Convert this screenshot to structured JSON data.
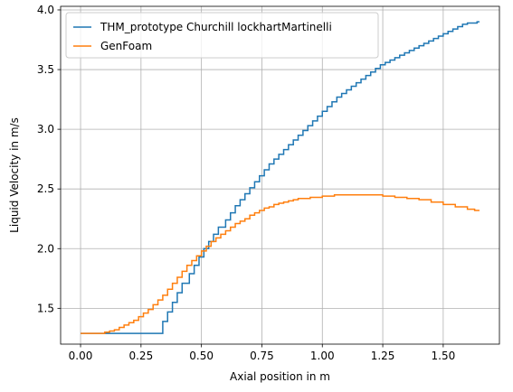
{
  "chart_data": {
    "type": "line",
    "drawstyle": "steps",
    "xlabel": "Axial position in m",
    "ylabel": "Liquid Velocity in m/s",
    "xlim": [
      -0.0825,
      1.7325
    ],
    "ylim": [
      1.2,
      4.03
    ],
    "xticks": [
      "0.00",
      "0.25",
      "0.50",
      "0.75",
      "1.00",
      "1.25",
      "1.50"
    ],
    "xtick_values": [
      0,
      0.25,
      0.5,
      0.75,
      1.0,
      1.25,
      1.5
    ],
    "yticks": [
      "1.5",
      "2.0",
      "2.5",
      "3.0",
      "3.5",
      "4.0"
    ],
    "ytick_values": [
      1.5,
      2.0,
      2.5,
      3.0,
      3.5,
      4.0
    ],
    "grid": true,
    "legend_position": "top-left",
    "series": [
      {
        "name": "THM_prototype Churchill lockhartMartinelli",
        "color": "#1f77b4",
        "x": [
          0.0,
          0.1,
          0.2,
          0.3,
          0.33,
          0.34,
          0.36,
          0.38,
          0.4,
          0.42,
          0.45,
          0.47,
          0.49,
          0.51,
          0.53,
          0.55,
          0.57,
          0.6,
          0.62,
          0.64,
          0.66,
          0.68,
          0.7,
          0.72,
          0.74,
          0.76,
          0.78,
          0.8,
          0.82,
          0.84,
          0.86,
          0.88,
          0.9,
          0.92,
          0.94,
          0.96,
          0.98,
          1.0,
          1.02,
          1.04,
          1.06,
          1.08,
          1.1,
          1.12,
          1.14,
          1.16,
          1.18,
          1.2,
          1.22,
          1.24,
          1.26,
          1.28,
          1.3,
          1.32,
          1.34,
          1.36,
          1.38,
          1.4,
          1.42,
          1.44,
          1.46,
          1.48,
          1.5,
          1.52,
          1.54,
          1.56,
          1.58,
          1.6,
          1.62,
          1.64,
          1.65
        ],
        "y": [
          1.29,
          1.29,
          1.29,
          1.29,
          1.29,
          1.39,
          1.47,
          1.55,
          1.63,
          1.71,
          1.79,
          1.86,
          1.93,
          2.0,
          2.06,
          2.12,
          2.18,
          2.24,
          2.3,
          2.36,
          2.41,
          2.46,
          2.51,
          2.56,
          2.61,
          2.66,
          2.71,
          2.75,
          2.79,
          2.83,
          2.87,
          2.91,
          2.95,
          2.99,
          3.03,
          3.07,
          3.11,
          3.15,
          3.19,
          3.23,
          3.27,
          3.3,
          3.33,
          3.36,
          3.39,
          3.42,
          3.45,
          3.48,
          3.51,
          3.54,
          3.56,
          3.58,
          3.6,
          3.62,
          3.64,
          3.66,
          3.68,
          3.7,
          3.72,
          3.74,
          3.76,
          3.78,
          3.8,
          3.82,
          3.84,
          3.86,
          3.88,
          3.89,
          3.89,
          3.9,
          3.9
        ]
      },
      {
        "name": "GenFoam",
        "color": "#ff7f0e",
        "x": [
          0.0,
          0.05,
          0.1,
          0.12,
          0.14,
          0.16,
          0.18,
          0.2,
          0.22,
          0.24,
          0.26,
          0.28,
          0.3,
          0.32,
          0.34,
          0.36,
          0.38,
          0.4,
          0.42,
          0.44,
          0.46,
          0.48,
          0.5,
          0.52,
          0.54,
          0.56,
          0.58,
          0.6,
          0.62,
          0.64,
          0.66,
          0.68,
          0.7,
          0.72,
          0.74,
          0.76,
          0.78,
          0.8,
          0.82,
          0.84,
          0.86,
          0.88,
          0.9,
          0.95,
          1.0,
          1.05,
          1.1,
          1.15,
          1.2,
          1.25,
          1.3,
          1.35,
          1.4,
          1.45,
          1.5,
          1.55,
          1.6,
          1.63,
          1.65
        ],
        "y": [
          1.29,
          1.29,
          1.3,
          1.31,
          1.32,
          1.34,
          1.36,
          1.38,
          1.4,
          1.43,
          1.46,
          1.49,
          1.53,
          1.57,
          1.61,
          1.66,
          1.71,
          1.76,
          1.81,
          1.86,
          1.9,
          1.94,
          1.98,
          2.02,
          2.06,
          2.09,
          2.12,
          2.15,
          2.18,
          2.21,
          2.23,
          2.25,
          2.28,
          2.3,
          2.32,
          2.34,
          2.35,
          2.37,
          2.38,
          2.39,
          2.4,
          2.41,
          2.42,
          2.43,
          2.44,
          2.45,
          2.45,
          2.45,
          2.45,
          2.44,
          2.43,
          2.42,
          2.41,
          2.39,
          2.37,
          2.35,
          2.33,
          2.32,
          2.32
        ]
      }
    ]
  }
}
